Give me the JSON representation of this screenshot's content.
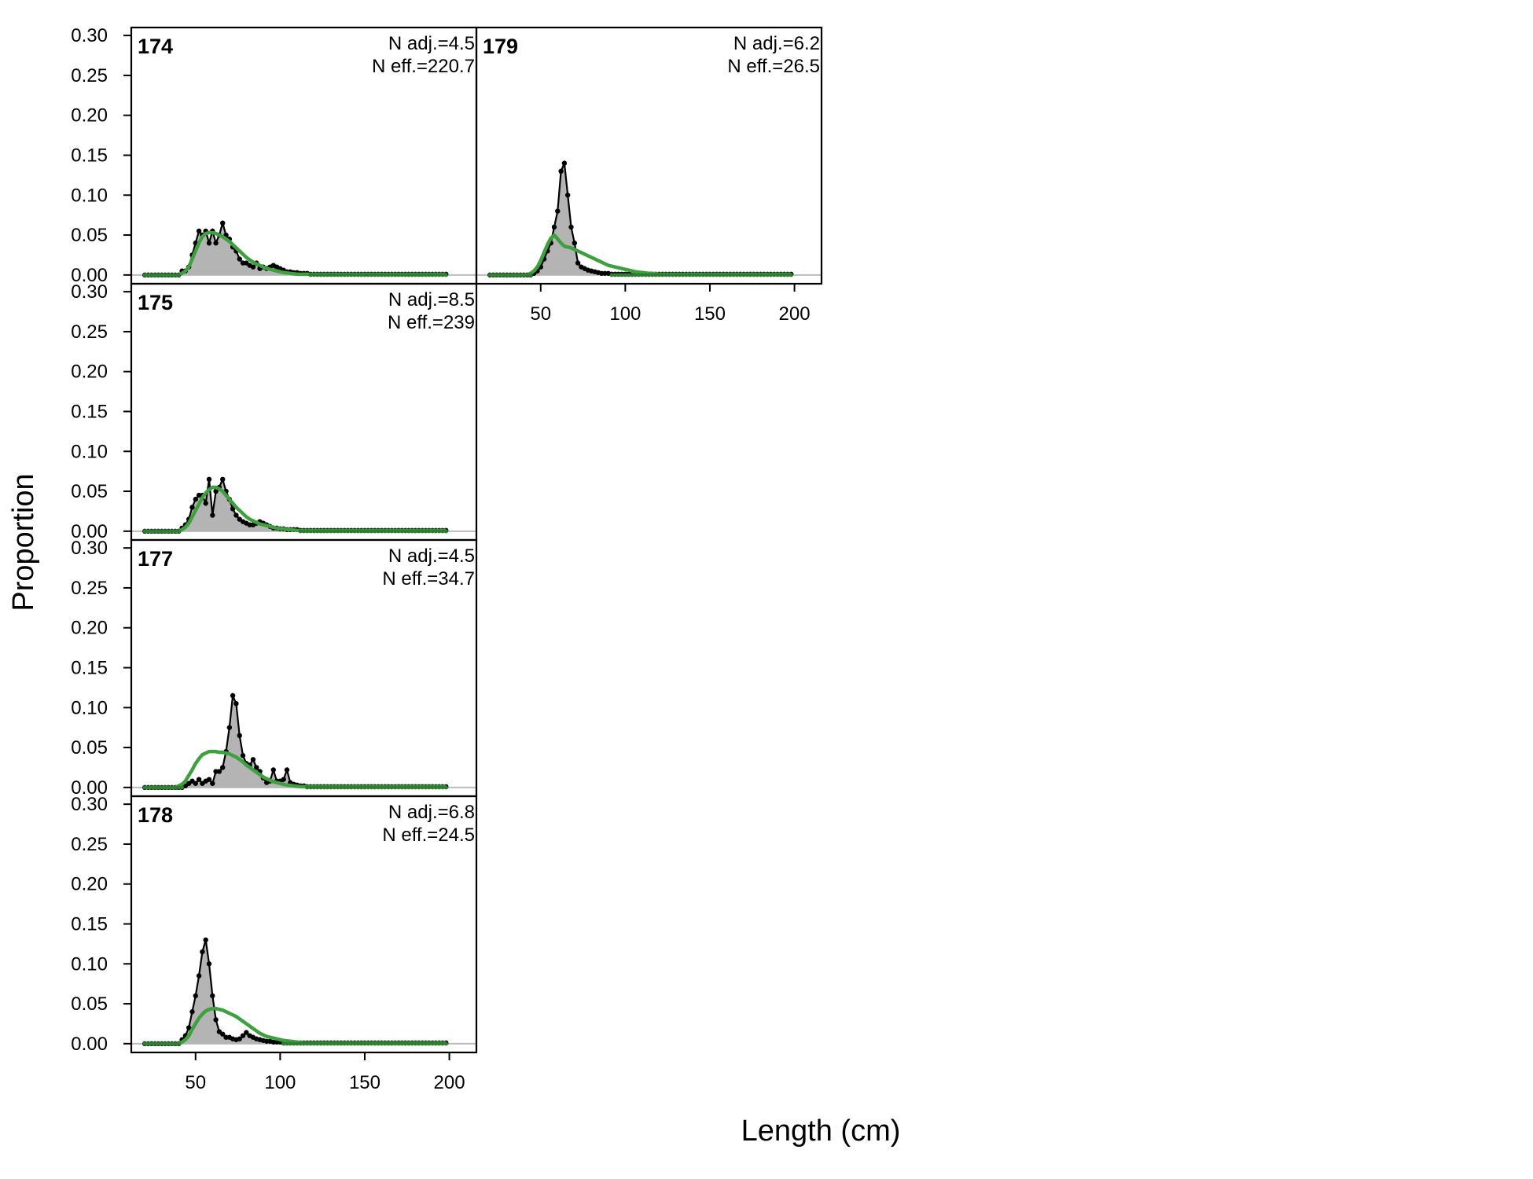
{
  "chart_data": {
    "type": "area",
    "xlabel": "Length (cm)",
    "ylabel": "Proportion",
    "xlim": [
      12,
      216
    ],
    "ylim": [
      -0.011,
      0.31
    ],
    "x_ticks": [
      50,
      100,
      150,
      200
    ],
    "y_ticks": [
      0.0,
      0.05,
      0.1,
      0.15,
      0.2,
      0.25,
      0.3
    ],
    "x_start": 20,
    "x_step": 2,
    "colors": {
      "observed_fill": "#b4b4b4",
      "observed_line": "#000000",
      "expected_line": "#3fa03f",
      "zero_line": "#bbbbbb",
      "endpoint_marker": "#2e7d32"
    },
    "panels": [
      {
        "label": "174",
        "n_adj": "N adj.=4.5",
        "n_eff": "N eff.=220.7",
        "observed": [
          0,
          0,
          0,
          0,
          0,
          0,
          0,
          0,
          0,
          0,
          0,
          0.005,
          0.005,
          0.01,
          0.025,
          0.04,
          0.055,
          0.05,
          0.055,
          0.04,
          0.055,
          0.04,
          0.05,
          0.065,
          0.05,
          0.045,
          0.035,
          0.03,
          0.02,
          0.015,
          0.015,
          0.012,
          0.01,
          0.015,
          0.008,
          0.01,
          0.008,
          0.01,
          0.012,
          0.01,
          0.008,
          0.006,
          0.004,
          0.004,
          0.003,
          0.003,
          0.002,
          0.002,
          0.002,
          0.001,
          0.001,
          0.001,
          0.001,
          0.001,
          0.001,
          0.001,
          0.001,
          0.001,
          0.001,
          0.001,
          0.001,
          0.001,
          0.001,
          0.001,
          0.001,
          0.001,
          0.001,
          0.001,
          0.001,
          0.001,
          0.001,
          0.001,
          0.001,
          0.001,
          0.001,
          0.001,
          0.001,
          0.001,
          0.001,
          0.001,
          0.001,
          0.001,
          0.001,
          0.001,
          0.001,
          0.001,
          0.001,
          0.001,
          0.001,
          0.001
        ],
        "expected": [
          0,
          0,
          0,
          0,
          0,
          0,
          0,
          0,
          0,
          0,
          0,
          0.002,
          0.005,
          0.01,
          0.02,
          0.03,
          0.04,
          0.048,
          0.052,
          0.053,
          0.053,
          0.052,
          0.05,
          0.048,
          0.045,
          0.042,
          0.038,
          0.034,
          0.03,
          0.026,
          0.022,
          0.019,
          0.016,
          0.014,
          0.012,
          0.01,
          0.008,
          0.007,
          0.006,
          0.005,
          0.004,
          0.003,
          0.0025,
          0.002,
          0.0015,
          0.001,
          0.001,
          0.001,
          0.001,
          0.001,
          0.001,
          0.001,
          0.001,
          0.001,
          0.001,
          0.001,
          0.001,
          0.001,
          0.001,
          0.001,
          0.001,
          0.001,
          0.001,
          0.001,
          0.001,
          0.001,
          0.001,
          0.001,
          0.001,
          0.001,
          0.001,
          0.001,
          0.001,
          0.001,
          0.001,
          0.001,
          0.001,
          0.001,
          0.001,
          0.001,
          0.001,
          0.001,
          0.001,
          0.001,
          0.001,
          0.001,
          0.001,
          0.001,
          0.001,
          0.001
        ]
      },
      {
        "label": "175",
        "n_adj": "N adj.=8.5",
        "n_eff": "N eff.=239",
        "observed": [
          0,
          0,
          0,
          0,
          0,
          0,
          0,
          0,
          0,
          0,
          0,
          0.004,
          0.008,
          0.015,
          0.03,
          0.04,
          0.045,
          0.045,
          0.035,
          0.065,
          0.02,
          0.05,
          0.055,
          0.065,
          0.05,
          0.04,
          0.028,
          0.02,
          0.015,
          0.012,
          0.01,
          0.008,
          0.008,
          0.01,
          0.012,
          0.01,
          0.008,
          0.006,
          0.004,
          0.004,
          0.003,
          0.003,
          0.002,
          0.002,
          0.002,
          0.002,
          0.001,
          0.001,
          0.001,
          0.001,
          0.001,
          0.001,
          0.001,
          0.001,
          0.001,
          0.001,
          0.001,
          0.001,
          0.001,
          0.001,
          0.001,
          0.001,
          0.001,
          0.001,
          0.001,
          0.001,
          0.001,
          0.001,
          0.001,
          0.001,
          0.001,
          0.001,
          0.001,
          0.001,
          0.001,
          0.001,
          0.001,
          0.001,
          0.001,
          0.001,
          0.001,
          0.001,
          0.001,
          0.001,
          0.001,
          0.001,
          0.001,
          0.001,
          0.001,
          0.001
        ],
        "expected": [
          0,
          0,
          0,
          0,
          0,
          0,
          0,
          0,
          0,
          0,
          0,
          0.002,
          0.005,
          0.01,
          0.018,
          0.026,
          0.034,
          0.042,
          0.048,
          0.052,
          0.055,
          0.055,
          0.053,
          0.05,
          0.045,
          0.04,
          0.035,
          0.03,
          0.026,
          0.022,
          0.018,
          0.015,
          0.013,
          0.011,
          0.009,
          0.008,
          0.007,
          0.006,
          0.005,
          0.004,
          0.003,
          0.003,
          0.002,
          0.002,
          0.0015,
          0.001,
          0.001,
          0.001,
          0.001,
          0.001,
          0.001,
          0.001,
          0.001,
          0.001,
          0.001,
          0.001,
          0.001,
          0.001,
          0.001,
          0.001,
          0.001,
          0.001,
          0.001,
          0.001,
          0.001,
          0.001,
          0.001,
          0.001,
          0.001,
          0.001,
          0.001,
          0.001,
          0.001,
          0.001,
          0.001,
          0.001,
          0.001,
          0.001,
          0.001,
          0.001,
          0.001,
          0.001,
          0.001,
          0.001,
          0.001,
          0.001,
          0.001,
          0.001,
          0.001,
          0.001
        ]
      },
      {
        "label": "177",
        "n_adj": "N adj.=4.5",
        "n_eff": "N eff.=34.7",
        "observed": [
          0,
          0,
          0,
          0,
          0,
          0,
          0,
          0,
          0,
          0,
          0,
          0,
          0.002,
          0.005,
          0.008,
          0.005,
          0.01,
          0.005,
          0.008,
          0.01,
          0.005,
          0.02,
          0.02,
          0.025,
          0.045,
          0.075,
          0.115,
          0.105,
          0.065,
          0.04,
          0.03,
          0.028,
          0.035,
          0.025,
          0.02,
          0.012,
          0.006,
          0.008,
          0.022,
          0.008,
          0.008,
          0.01,
          0.022,
          0.006,
          0.004,
          0.003,
          0.002,
          0.002,
          0.001,
          0.001,
          0.001,
          0.001,
          0.001,
          0.001,
          0.001,
          0.001,
          0.001,
          0.001,
          0.001,
          0.001,
          0.001,
          0.001,
          0.001,
          0.001,
          0.001,
          0.001,
          0.001,
          0.001,
          0.001,
          0.001,
          0.001,
          0.001,
          0.001,
          0.001,
          0.001,
          0.001,
          0.001,
          0.001,
          0.001,
          0.001,
          0.001,
          0.001,
          0.001,
          0.001,
          0.001,
          0.001,
          0.001,
          0.001,
          0.001,
          0.001
        ],
        "expected": [
          0,
          0,
          0,
          0,
          0,
          0,
          0,
          0,
          0,
          0,
          0.002,
          0.004,
          0.008,
          0.015,
          0.022,
          0.03,
          0.036,
          0.041,
          0.043,
          0.045,
          0.045,
          0.045,
          0.044,
          0.044,
          0.043,
          0.042,
          0.04,
          0.038,
          0.035,
          0.032,
          0.028,
          0.025,
          0.022,
          0.019,
          0.016,
          0.013,
          0.011,
          0.009,
          0.007,
          0.006,
          0.005,
          0.004,
          0.003,
          0.0025,
          0.002,
          0.0015,
          0.001,
          0.001,
          0.001,
          0.001,
          0.001,
          0.001,
          0.001,
          0.001,
          0.001,
          0.001,
          0.001,
          0.001,
          0.001,
          0.001,
          0.001,
          0.001,
          0.001,
          0.001,
          0.001,
          0.001,
          0.001,
          0.001,
          0.001,
          0.001,
          0.001,
          0.001,
          0.001,
          0.001,
          0.001,
          0.001,
          0.001,
          0.001,
          0.001,
          0.001,
          0.001,
          0.001,
          0.001,
          0.001,
          0.001,
          0.001,
          0.001,
          0.001,
          0.001,
          0.001
        ]
      },
      {
        "label": "178",
        "n_adj": "N adj.=6.8",
        "n_eff": "N eff.=24.5",
        "observed": [
          0,
          0,
          0,
          0,
          0,
          0,
          0,
          0,
          0,
          0,
          0,
          0.005,
          0.01,
          0.02,
          0.04,
          0.06,
          0.085,
          0.115,
          0.13,
          0.1,
          0.06,
          0.03,
          0.015,
          0.012,
          0.008,
          0.008,
          0.006,
          0.005,
          0.006,
          0.01,
          0.014,
          0.01,
          0.008,
          0.006,
          0.005,
          0.004,
          0.003,
          0.003,
          0.002,
          0.002,
          0.002,
          0.001,
          0.001,
          0.001,
          0.001,
          0.001,
          0.001,
          0.001,
          0.001,
          0.001,
          0.001,
          0.001,
          0.001,
          0.001,
          0.001,
          0.001,
          0.001,
          0.001,
          0.001,
          0.001,
          0.001,
          0.001,
          0.001,
          0.001,
          0.001,
          0.001,
          0.001,
          0.001,
          0.001,
          0.001,
          0.001,
          0.001,
          0.001,
          0.001,
          0.001,
          0.001,
          0.001,
          0.001,
          0.001,
          0.001,
          0.001,
          0.001,
          0.001,
          0.001,
          0.001,
          0.001,
          0.001,
          0.001,
          0.001,
          0.001
        ],
        "expected": [
          0,
          0,
          0,
          0,
          0,
          0,
          0,
          0,
          0,
          0,
          0,
          0.002,
          0.005,
          0.01,
          0.018,
          0.025,
          0.032,
          0.037,
          0.041,
          0.043,
          0.044,
          0.044,
          0.043,
          0.042,
          0.04,
          0.038,
          0.036,
          0.034,
          0.031,
          0.028,
          0.025,
          0.022,
          0.019,
          0.016,
          0.013,
          0.011,
          0.009,
          0.008,
          0.007,
          0.006,
          0.005,
          0.004,
          0.0035,
          0.003,
          0.0025,
          0.002,
          0.0015,
          0.001,
          0.001,
          0.001,
          0.001,
          0.001,
          0.001,
          0.001,
          0.001,
          0.001,
          0.001,
          0.001,
          0.001,
          0.001,
          0.001,
          0.001,
          0.001,
          0.001,
          0.001,
          0.001,
          0.001,
          0.001,
          0.001,
          0.001,
          0.001,
          0.001,
          0.001,
          0.001,
          0.001,
          0.001,
          0.001,
          0.001,
          0.001,
          0.001,
          0.001,
          0.001,
          0.001,
          0.001,
          0.001,
          0.001,
          0.001,
          0.001,
          0.001,
          0.001
        ]
      },
      {
        "label": "179",
        "n_adj": "N adj.=6.2",
        "n_eff": "N eff.=26.5",
        "observed": [
          0,
          0,
          0,
          0,
          0,
          0,
          0,
          0,
          0,
          0,
          0,
          0,
          0,
          0.002,
          0.005,
          0.01,
          0.02,
          0.03,
          0.04,
          0.06,
          0.08,
          0.13,
          0.14,
          0.1,
          0.06,
          0.04,
          0.015,
          0.01,
          0.008,
          0.006,
          0.005,
          0.004,
          0.003,
          0.002,
          0.002,
          0.002,
          0.001,
          0.001,
          0.001,
          0.001,
          0.001,
          0.001,
          0.001,
          0.001,
          0.001,
          0.001,
          0.001,
          0.001,
          0.001,
          0.001,
          0.001,
          0.001,
          0.001,
          0.001,
          0.001,
          0.001,
          0.001,
          0.001,
          0.001,
          0.001,
          0.001,
          0.001,
          0.001,
          0.001,
          0.001,
          0.001,
          0.001,
          0.001,
          0.001,
          0.001,
          0.001,
          0.001,
          0.001,
          0.001,
          0.001,
          0.001,
          0.001,
          0.001,
          0.001,
          0.001,
          0.001,
          0.001,
          0.001,
          0.001,
          0.001,
          0.001,
          0.001,
          0.001,
          0.001,
          0.001
        ],
        "expected": [
          0,
          0,
          0,
          0,
          0,
          0,
          0,
          0,
          0,
          0,
          0,
          0,
          0.002,
          0.005,
          0.01,
          0.018,
          0.028,
          0.038,
          0.046,
          0.05,
          0.045,
          0.04,
          0.036,
          0.035,
          0.034,
          0.032,
          0.03,
          0.028,
          0.026,
          0.024,
          0.022,
          0.02,
          0.018,
          0.016,
          0.014,
          0.012,
          0.011,
          0.01,
          0.009,
          0.008,
          0.007,
          0.006,
          0.005,
          0.004,
          0.0035,
          0.003,
          0.0025,
          0.002,
          0.002,
          0.0015,
          0.001,
          0.001,
          0.001,
          0.001,
          0.001,
          0.001,
          0.001,
          0.001,
          0.001,
          0.001,
          0.001,
          0.001,
          0.001,
          0.001,
          0.001,
          0.001,
          0.001,
          0.001,
          0.001,
          0.001,
          0.001,
          0.001,
          0.001,
          0.001,
          0.001,
          0.001,
          0.001,
          0.001,
          0.001,
          0.001,
          0.001,
          0.001,
          0.001,
          0.001,
          0.001,
          0.001,
          0.001,
          0.001,
          0.001,
          0.001
        ]
      }
    ]
  }
}
